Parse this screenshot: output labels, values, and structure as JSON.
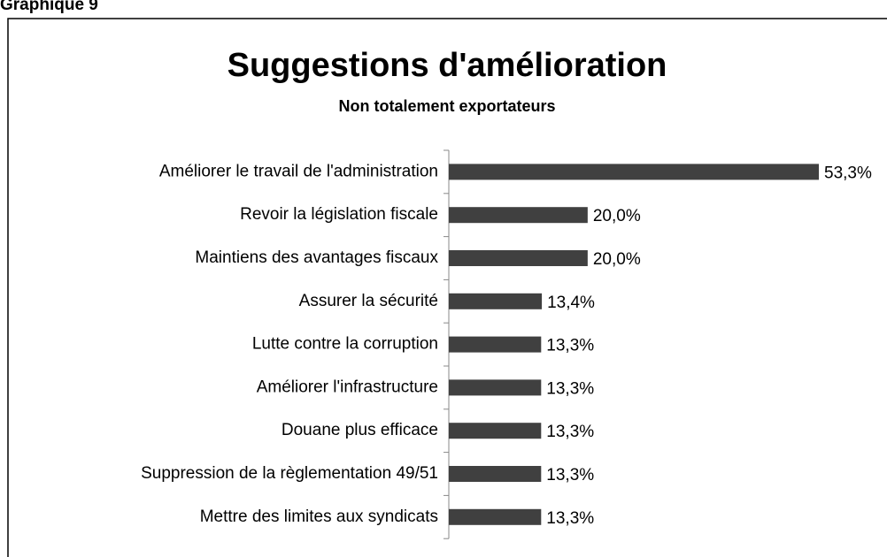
{
  "caption": "Graphique 9",
  "chart_data": {
    "type": "hbar",
    "title": "Suggestions d'amélioration",
    "subtitle": "Non totalement exportateurs",
    "categories": [
      "Améliorer le travail de l'administration",
      "Revoir la législation fiscale",
      "Maintiens des avantages fiscaux",
      "Assurer la sécurité",
      "Lutte contre la corruption",
      "Améliorer l'infrastructure",
      "Douane plus efficace",
      "Suppression de la règlementation 49/51",
      "Mettre des limites aux syndicats"
    ],
    "values": [
      53.3,
      20.0,
      20.0,
      13.4,
      13.3,
      13.3,
      13.3,
      13.3,
      13.3
    ],
    "value_labels": [
      "53,3%",
      "20,0%",
      "20,0%",
      "13,4%",
      "13,3%",
      "13,3%",
      "13,3%",
      "13,3%",
      "13,3%"
    ],
    "color": "#404040"
  }
}
